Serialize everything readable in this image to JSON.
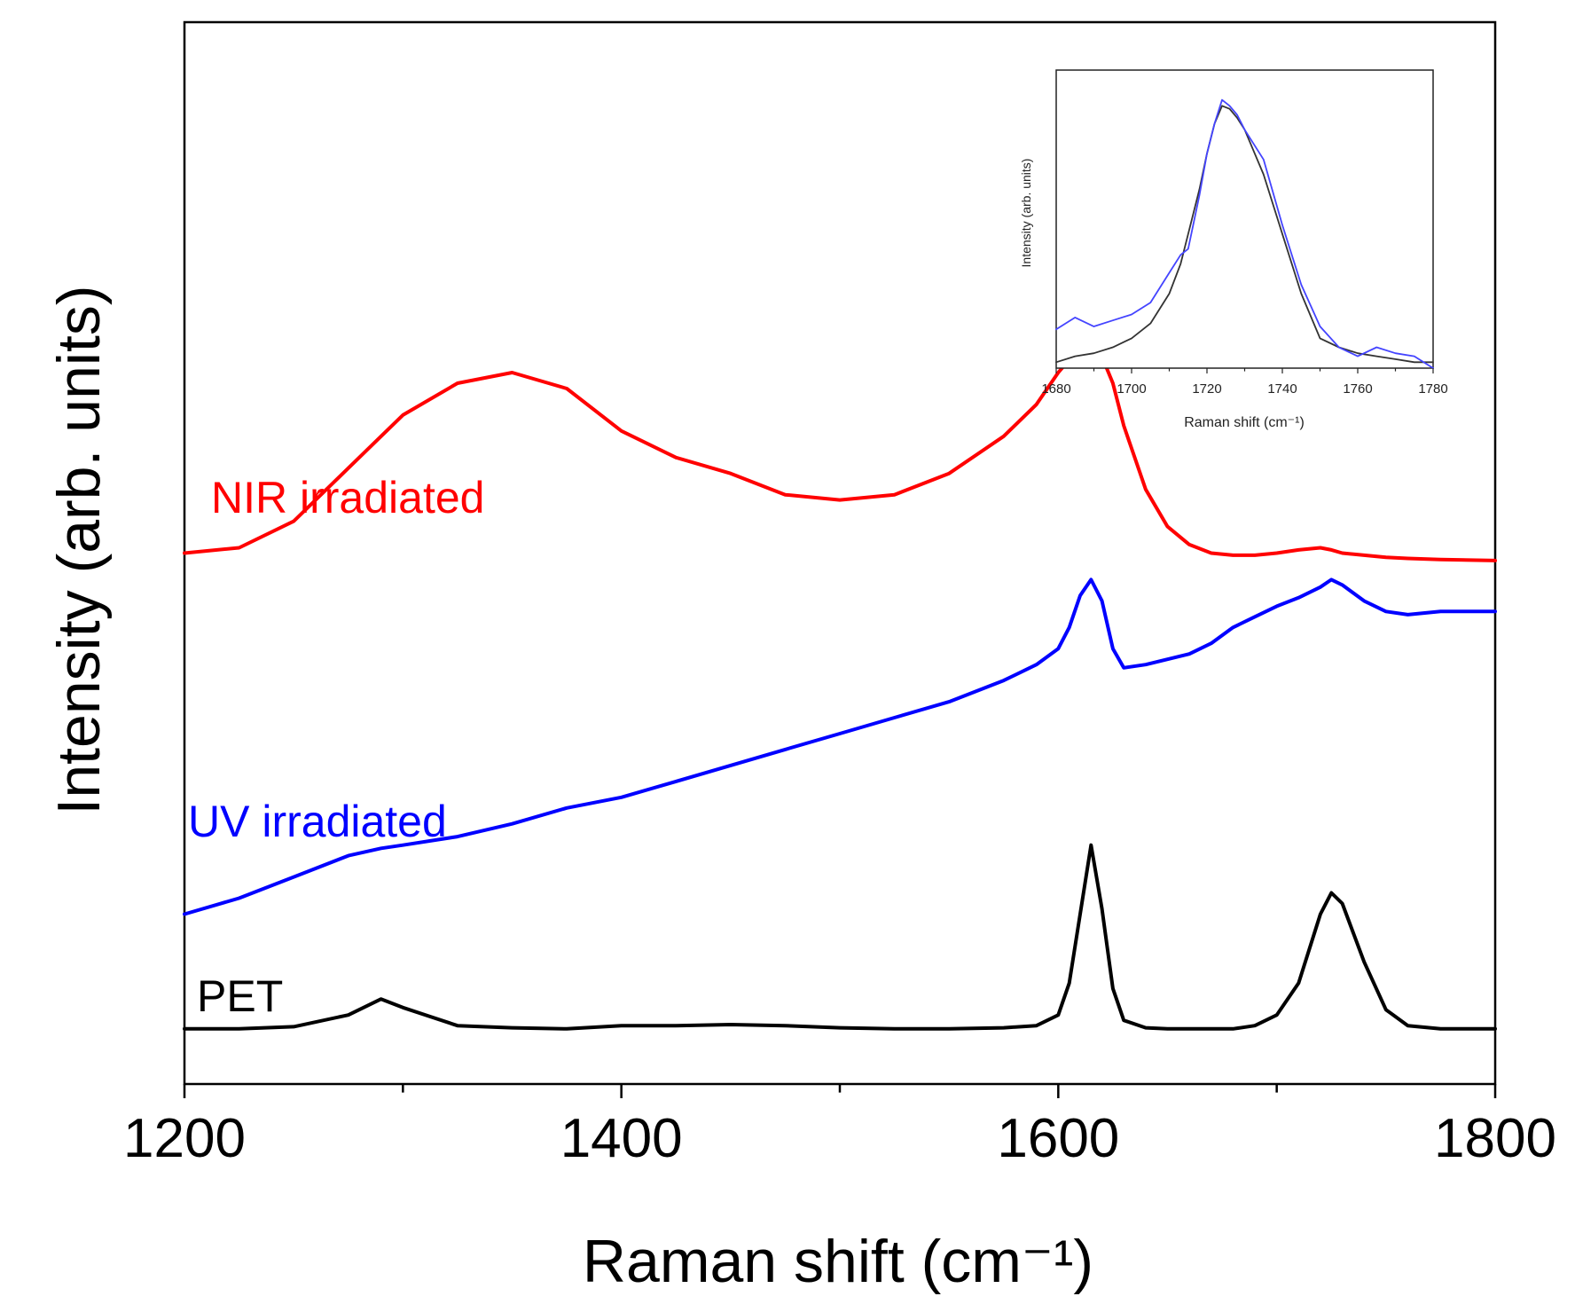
{
  "chart_data": [
    {
      "type": "line",
      "title": "",
      "xlabel": "Raman shift (cm⁻¹)",
      "ylabel": "Intensity (arb. units)",
      "xlim": [
        1200,
        1800
      ],
      "ylim": [
        0,
        10
      ],
      "xticks": [
        1200,
        1400,
        1600,
        1800
      ],
      "xtick_labels": [
        "1200",
        "1400",
        "1600",
        "1800"
      ],
      "yticks": [],
      "grid": false,
      "legend": "none",
      "x": [
        1200,
        1225,
        1250,
        1275,
        1290,
        1300,
        1325,
        1350,
        1375,
        1400,
        1425,
        1450,
        1475,
        1500,
        1525,
        1550,
        1575,
        1590,
        1600,
        1605,
        1610,
        1615,
        1620,
        1625,
        1630,
        1640,
        1650,
        1660,
        1670,
        1680,
        1690,
        1700,
        1710,
        1720,
        1725,
        1730,
        1740,
        1750,
        1760,
        1775,
        1800
      ],
      "series": [
        {
          "name": "NIR irradiated",
          "color": "#ff0000",
          "label": "NIR irradiated",
          "values": [
            5.0,
            5.05,
            5.3,
            5.8,
            6.1,
            6.3,
            6.6,
            6.7,
            6.55,
            6.15,
            5.9,
            5.75,
            5.55,
            5.5,
            5.55,
            5.75,
            6.1,
            6.4,
            6.7,
            6.82,
            6.9,
            6.92,
            6.85,
            6.6,
            6.2,
            5.6,
            5.25,
            5.08,
            5.0,
            4.98,
            4.98,
            5.0,
            5.03,
            5.05,
            5.03,
            5.0,
            4.98,
            4.96,
            4.95,
            4.94,
            4.93
          ]
        },
        {
          "name": "UV irradiated",
          "color": "#0000ff",
          "label": "UV irradiated",
          "values": [
            1.6,
            1.75,
            1.95,
            2.15,
            2.22,
            2.25,
            2.33,
            2.45,
            2.6,
            2.7,
            2.85,
            3.0,
            3.15,
            3.3,
            3.45,
            3.6,
            3.8,
            3.95,
            4.1,
            4.3,
            4.6,
            4.75,
            4.55,
            4.1,
            3.92,
            3.95,
            4.0,
            4.05,
            4.15,
            4.3,
            4.4,
            4.5,
            4.58,
            4.68,
            4.75,
            4.7,
            4.55,
            4.45,
            4.42,
            4.45,
            4.45
          ]
        },
        {
          "name": "PET",
          "color": "#000000",
          "label": "PET",
          "values": [
            0.52,
            0.52,
            0.54,
            0.65,
            0.8,
            0.72,
            0.55,
            0.53,
            0.52,
            0.55,
            0.55,
            0.56,
            0.55,
            0.53,
            0.52,
            0.52,
            0.53,
            0.55,
            0.65,
            0.95,
            1.6,
            2.25,
            1.65,
            0.9,
            0.6,
            0.53,
            0.52,
            0.52,
            0.52,
            0.52,
            0.55,
            0.65,
            0.95,
            1.6,
            1.8,
            1.7,
            1.15,
            0.7,
            0.55,
            0.52,
            0.52
          ]
        }
      ]
    },
    {
      "type": "line",
      "title": "",
      "placement": "inset top-right",
      "xlabel": "Raman shift (cm⁻¹)",
      "ylabel": "Intensity (arb. units)",
      "xlim": [
        1680,
        1780
      ],
      "ylim": [
        0,
        1
      ],
      "xticks": [
        1680,
        1700,
        1720,
        1740,
        1760,
        1780
      ],
      "xtick_labels": [
        "1680",
        "1700",
        "1720",
        "1740",
        "1760",
        "1780"
      ],
      "grid": false,
      "legend": "none",
      "x": [
        1680,
        1685,
        1690,
        1695,
        1700,
        1705,
        1710,
        1713,
        1715,
        1718,
        1720,
        1722,
        1724,
        1726,
        1728,
        1730,
        1735,
        1740,
        1745,
        1750,
        1755,
        1760,
        1765,
        1770,
        1775,
        1780
      ],
      "series": [
        {
          "name": "black",
          "color": "#333333",
          "values": [
            0.02,
            0.04,
            0.05,
            0.07,
            0.1,
            0.15,
            0.25,
            0.35,
            0.45,
            0.6,
            0.72,
            0.82,
            0.88,
            0.87,
            0.84,
            0.8,
            0.65,
            0.45,
            0.25,
            0.1,
            0.07,
            0.05,
            0.04,
            0.03,
            0.02,
            0.02
          ]
        },
        {
          "name": "blue",
          "color": "#4444ff",
          "values": [
            0.13,
            0.17,
            0.14,
            0.16,
            0.18,
            0.22,
            0.32,
            0.38,
            0.4,
            0.58,
            0.72,
            0.82,
            0.9,
            0.88,
            0.85,
            0.8,
            0.7,
            0.48,
            0.28,
            0.14,
            0.07,
            0.04,
            0.07,
            0.05,
            0.04,
            0.0
          ]
        }
      ]
    }
  ]
}
